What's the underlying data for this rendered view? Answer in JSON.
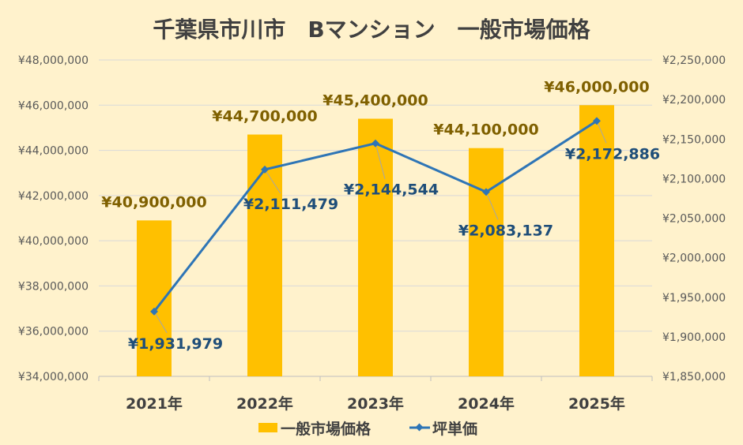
{
  "chart_data": {
    "type": "bar+line",
    "title": "千葉県市川市　Bマンション　一般市場価格",
    "categories": [
      "2021年",
      "2022年",
      "2023年",
      "2024年",
      "2025年"
    ],
    "series": [
      {
        "name": "一般市場価格",
        "type": "bar",
        "axis": "left",
        "color": "#FFC000",
        "values": [
          40900000,
          44700000,
          45400000,
          44100000,
          46000000
        ],
        "labels": [
          "¥40,900,000",
          "¥44,700,000",
          "¥45,400,000",
          "¥44,100,000",
          "¥46,000,000"
        ]
      },
      {
        "name": "坪単価",
        "type": "line",
        "axis": "right",
        "color": "#2E75B6",
        "values": [
          1931979,
          2111479,
          2144544,
          2083137,
          2172886
        ],
        "labels": [
          "¥1,931,979",
          "¥2,111,479",
          "¥2,144,544",
          "¥2,083,137",
          "¥2,172,886"
        ]
      }
    ],
    "left_axis": {
      "ylim": [
        34000000,
        48000000
      ],
      "ticks": [
        "¥34,000,000",
        "¥36,000,000",
        "¥38,000,000",
        "¥40,000,000",
        "¥42,000,000",
        "¥44,000,000",
        "¥46,000,000",
        "¥48,000,000"
      ]
    },
    "right_axis": {
      "ylim": [
        1850000,
        2250000
      ],
      "ticks": [
        "¥1,850,000",
        "¥1,900,000",
        "¥1,950,000",
        "¥2,000,000",
        "¥2,050,000",
        "¥2,100,000",
        "¥2,150,000",
        "¥2,200,000",
        "¥2,250,000"
      ]
    },
    "grid": true,
    "legend": "bottom",
    "background": "#FFF2CC"
  }
}
